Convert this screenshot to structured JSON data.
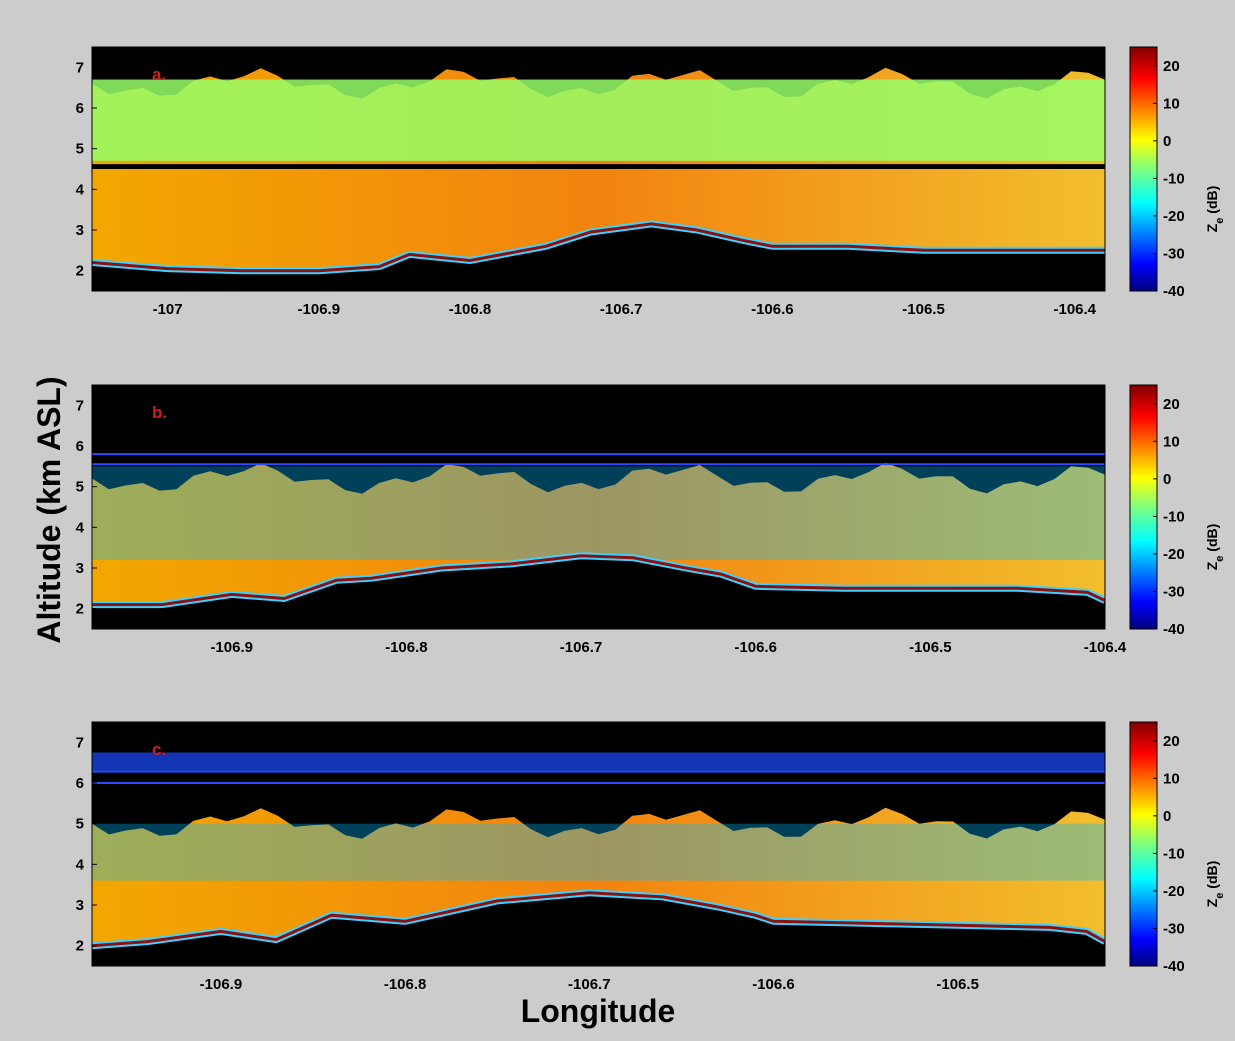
{
  "figure": {
    "ylabel": "Altitude (km ASL)",
    "xlabel": "Longitude",
    "colorbar_label_main": "Z",
    "colorbar_label_sub": "e",
    "colorbar_label_unit": " (dB)",
    "colorbar_ticks": [
      20,
      10,
      0,
      -10,
      -20,
      -30,
      -40
    ],
    "colorbar_range": [
      -40,
      25
    ],
    "colormap": "jet",
    "background_color": "#cccccc"
  },
  "chart_data": [
    {
      "type": "heatmap",
      "panel_label": "a.",
      "xlim": [
        -107.05,
        -106.38
      ],
      "ylim": [
        1.5,
        7.5
      ],
      "xticks": [
        -107,
        -106.9,
        -106.8,
        -106.7,
        -106.6,
        -106.5,
        -106.4
      ],
      "yticks": [
        2,
        3,
        4,
        5,
        6,
        7
      ],
      "terrain": {
        "lon": [
          -107.05,
          -107.0,
          -106.95,
          -106.9,
          -106.86,
          -106.84,
          -106.8,
          -106.75,
          -106.72,
          -106.68,
          -106.65,
          -106.62,
          -106.6,
          -106.55,
          -106.5,
          -106.45,
          -106.4,
          -106.38
        ],
        "alt": [
          2.2,
          2.05,
          2.0,
          2.0,
          2.1,
          2.4,
          2.25,
          2.6,
          2.95,
          3.15,
          3.0,
          2.75,
          2.6,
          2.6,
          2.5,
          2.5,
          2.5,
          2.5
        ]
      },
      "echo_top_km": 6.6,
      "gap_km": [
        4.5,
        4.62
      ],
      "upper_ze_dB": -6,
      "lower_ze_dB": 6
    },
    {
      "type": "heatmap",
      "panel_label": "b.",
      "xlim": [
        -106.98,
        -106.4
      ],
      "ylim": [
        1.5,
        7.5
      ],
      "xticks": [
        -106.9,
        -106.8,
        -106.7,
        -106.6,
        -106.5,
        -106.4
      ],
      "yticks": [
        2,
        3,
        4,
        5,
        6,
        7
      ],
      "terrain": {
        "lon": [
          -106.98,
          -106.94,
          -106.9,
          -106.87,
          -106.84,
          -106.82,
          -106.78,
          -106.74,
          -106.7,
          -106.67,
          -106.64,
          -106.62,
          -106.6,
          -106.55,
          -106.5,
          -106.45,
          -106.41,
          -106.4
        ],
        "alt": [
          2.1,
          2.1,
          2.35,
          2.25,
          2.7,
          2.75,
          3.0,
          3.1,
          3.3,
          3.25,
          3.0,
          2.85,
          2.55,
          2.5,
          2.5,
          2.5,
          2.4,
          2.2
        ]
      },
      "echo_top_km": 5.2,
      "lines_km": [
        5.55,
        5.8
      ],
      "upper_ze_dB": -20,
      "lower_ze_dB": 10
    },
    {
      "type": "heatmap",
      "panel_label": "c.",
      "xlim": [
        -106.97,
        -106.42
      ],
      "ylim": [
        1.5,
        7.5
      ],
      "xticks": [
        -106.9,
        -106.8,
        -106.7,
        -106.6,
        -106.5
      ],
      "yticks": [
        2,
        3,
        4,
        5,
        6,
        7
      ],
      "terrain": {
        "lon": [
          -106.97,
          -106.94,
          -106.9,
          -106.87,
          -106.84,
          -106.8,
          -106.75,
          -106.7,
          -106.66,
          -106.63,
          -106.61,
          -106.6,
          -106.55,
          -106.5,
          -106.45,
          -106.43,
          -106.42
        ],
        "alt": [
          2.0,
          2.1,
          2.35,
          2.15,
          2.75,
          2.6,
          3.1,
          3.3,
          3.2,
          2.95,
          2.75,
          2.6,
          2.55,
          2.5,
          2.45,
          2.35,
          2.1
        ]
      },
      "echo_top_km": 5.0,
      "lines_km": [
        6.0,
        6.28
      ],
      "upper_ze_dB": -20,
      "lower_ze_dB": 4
    }
  ]
}
